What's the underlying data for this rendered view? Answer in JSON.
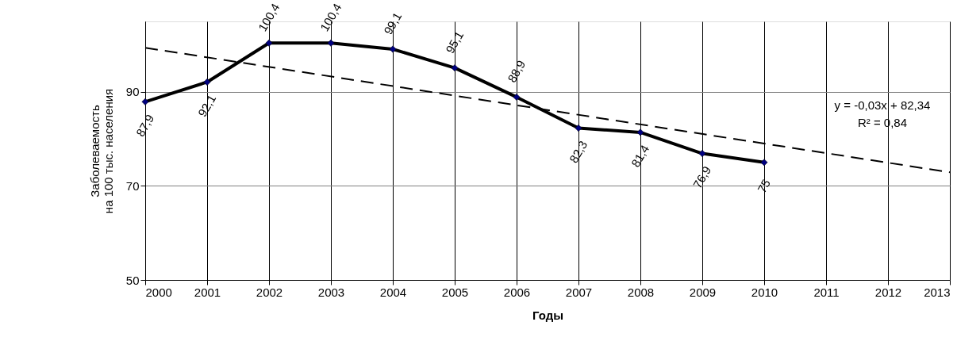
{
  "chart_data": {
    "type": "line",
    "xlabel": "Годы",
    "ylabel": "Заболеваемость\nна 100 тыс. населения",
    "x": [
      2000,
      2001,
      2002,
      2003,
      2004,
      2005,
      2006,
      2007,
      2008,
      2009,
      2010
    ],
    "series": [
      {
        "color": "#000000",
        "marker": "diamond",
        "line_style": "solid",
        "values": [
          87.9,
          92.1,
          100.4,
          100.4,
          99.1,
          95.1,
          88.9,
          82.3,
          81.4,
          76.9,
          75
        ],
        "value_labels": [
          "87,9",
          "92,1",
          "100,4",
          "100,4",
          "99,1",
          "95,1",
          "88,9",
          "82,3",
          "81,4",
          "76,9",
          "75"
        ]
      },
      {
        "color": "#000000",
        "marker": "none",
        "line_style": "dashed",
        "x": [
          2000,
          2013
        ],
        "values": [
          99.4,
          72.9
        ]
      }
    ],
    "xlim": [
      2000,
      2013
    ],
    "xticks": [
      2000,
      2001,
      2002,
      2003,
      2004,
      2005,
      2006,
      2007,
      2008,
      2009,
      2010,
      2011,
      2012,
      2013
    ],
    "ylim": [
      50,
      105
    ],
    "yticks": [
      50,
      70,
      90
    ],
    "grid": true,
    "annotations": [
      "y = -0,03x + 82,34",
      "R² = 0,84"
    ]
  }
}
